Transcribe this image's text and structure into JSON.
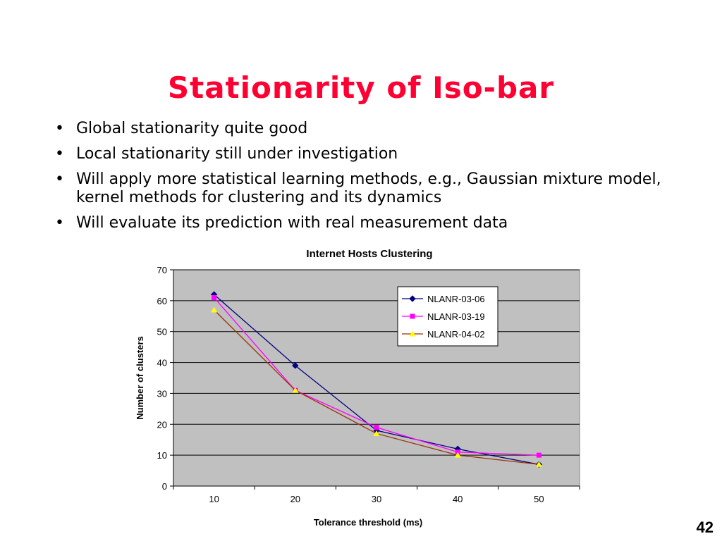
{
  "slide": {
    "title": "Stationarity of Iso-bar",
    "bullets": [
      "Global stationarity quite good",
      "Local stationarity still under investigation",
      "Will apply more statistical learning methods, e.g., Gaussian mixture model, kernel methods for clustering and its dynamics",
      "Will evaluate its prediction with real measurement data"
    ],
    "page_number": "42"
  },
  "chart_data": {
    "type": "line",
    "title": "Internet Hosts Clustering",
    "xlabel": "Tolerance threshold (ms)",
    "ylabel": "Number of clusters",
    "x": [
      10,
      20,
      30,
      40,
      50
    ],
    "ylim": [
      0,
      70
    ],
    "yticks": [
      0,
      10,
      20,
      30,
      40,
      50,
      60,
      70
    ],
    "grid": true,
    "legend_position": "top-right",
    "plot_background": "#c0c0c0",
    "series": [
      {
        "name": "NLANR-03-06",
        "values": [
          62,
          39,
          18,
          12,
          7
        ],
        "color": "#000080",
        "marker": "diamond"
      },
      {
        "name": "NLANR-03-19",
        "values": [
          61,
          31,
          19,
          11,
          10
        ],
        "color": "#ff00ff",
        "marker": "square"
      },
      {
        "name": "NLANR-04-02",
        "values": [
          57,
          31,
          17,
          10,
          7
        ],
        "color": "#993300",
        "marker_color": "#ffff00",
        "marker": "triangle"
      }
    ]
  }
}
